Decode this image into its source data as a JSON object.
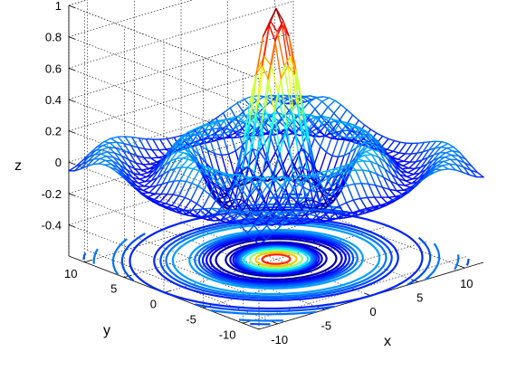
{
  "chart_data": {
    "type": "surface",
    "function": "sin(r)/r, r = sqrt(x^2 + y^2)",
    "plot_style": "meshc (mesh surface with contour projection)",
    "colormap": "jet",
    "grid": true,
    "box": true,
    "view": "3d",
    "xlabel": "x",
    "ylabel": "y",
    "zlabel": "z",
    "xlim": [
      -12,
      12
    ],
    "ylim": [
      -12,
      12
    ],
    "zlim": [
      -0.6,
      1
    ],
    "contour_floor": -0.6,
    "xticks": [
      "-10",
      "-5",
      "0",
      "5",
      "10"
    ],
    "yticks": [
      "-10",
      "-5",
      "0",
      "5",
      "10"
    ],
    "zticks": [
      "-0.4",
      "-0.2",
      "0",
      "0.2",
      "0.4",
      "0.6",
      "0.8",
      "1"
    ],
    "xtick_values": [
      -10,
      -5,
      0,
      5,
      10
    ],
    "ytick_values": [
      -10,
      -5,
      0,
      5,
      10
    ],
    "ztick_values": [
      -0.4,
      -0.2,
      0,
      0.2,
      0.4,
      0.6,
      0.8,
      1
    ],
    "mesh_range": [
      -12,
      12
    ],
    "mesh_samples": 33,
    "peak_value": 1
  }
}
